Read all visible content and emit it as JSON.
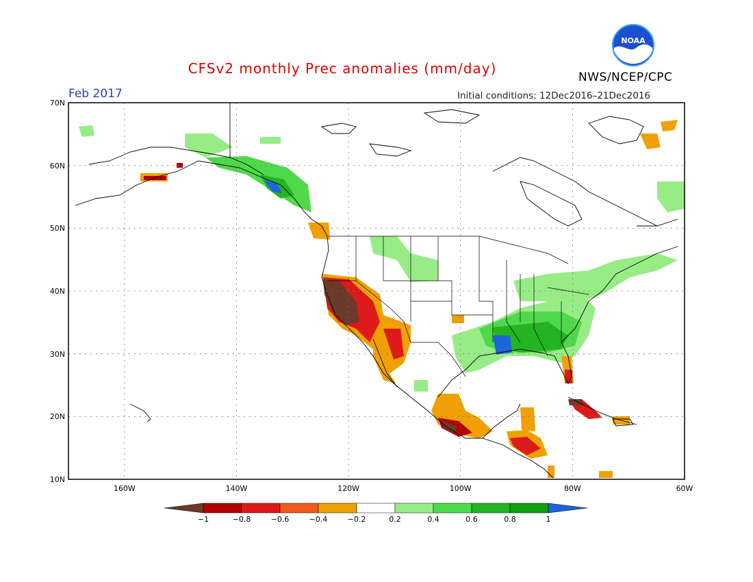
{
  "title": "CFSv2 monthly Prec anomalies (mm/day)",
  "month": "Feb 2017",
  "initial_conditions": "Initial conditions: 12Dec2016–21Dec2016",
  "organization": "NWS/NCEP/CPC",
  "logo_text": "NOAA",
  "map": {
    "lon_range": [
      -170,
      -60
    ],
    "lat_range": [
      10,
      70
    ],
    "lat_labels": [
      "70N",
      "60N",
      "50N",
      "40N",
      "30N",
      "20N",
      "10N"
    ],
    "lon_labels": [
      "160W",
      "140W",
      "120W",
      "100W",
      "80W",
      "60W"
    ],
    "grid": "dotted"
  },
  "legend": {
    "ticks": [
      "−1",
      "−0.8",
      "−0.6",
      "−0.4",
      "−0.2",
      "0.2",
      "0.4",
      "0.6",
      "0.8",
      "1"
    ],
    "colors": [
      "#6b3a2a",
      "#b40000",
      "#dd1a1a",
      "#f05a1e",
      "#f0a000",
      "#ffffff",
      "#98ec86",
      "#50d84c",
      "#22b422",
      "#10a010",
      "#1e64dc"
    ]
  }
}
